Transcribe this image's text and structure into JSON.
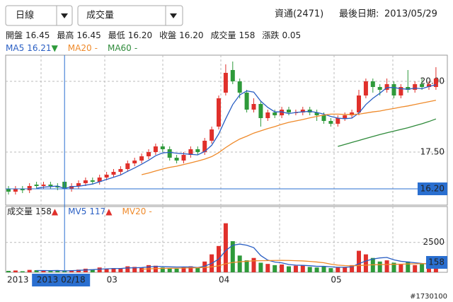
{
  "header": {
    "period": "日線",
    "indicator": "成交量",
    "stock": "資通(2471)",
    "last_date_label": "最後日期:",
    "last_date": "2013/05/29"
  },
  "info": [
    {
      "label": "開盤",
      "value": "16.45"
    },
    {
      "label": "最高",
      "value": "16.45"
    },
    {
      "label": "最低",
      "value": "16.20"
    },
    {
      "label": "收盤",
      "value": "16.20"
    },
    {
      "label": "成交量",
      "value": "158"
    },
    {
      "label": "漲跌",
      "value": "0.05"
    }
  ],
  "watermark": "#1730100",
  "chart_data": [
    {
      "type": "candlestick",
      "categories": [
        "2013",
        null,
        null,
        null,
        null,
        null,
        null,
        null,
        null,
        null,
        null,
        null,
        null,
        null,
        "03",
        null,
        null,
        null,
        null,
        null,
        null,
        null,
        null,
        null,
        null,
        null,
        null,
        null,
        null,
        null,
        "04",
        null,
        null,
        null,
        null,
        null,
        null,
        null,
        null,
        null,
        null,
        null,
        null,
        null,
        null,
        null,
        "05",
        null,
        null,
        null,
        null,
        null,
        null,
        null,
        null,
        null,
        null,
        null,
        null,
        null,
        null,
        null
      ],
      "open": [
        16.2,
        16.1,
        16.2,
        16.15,
        16.35,
        16.3,
        16.35,
        16.3,
        16.45,
        16.2,
        16.3,
        16.4,
        16.5,
        16.45,
        16.6,
        16.7,
        16.8,
        16.9,
        17.1,
        17.2,
        17.35,
        17.5,
        17.7,
        17.6,
        17.3,
        17.2,
        17.4,
        17.6,
        17.5,
        17.9,
        18.4,
        19.6,
        20.4,
        20.0,
        19.6,
        19.0,
        19.2,
        18.7,
        18.9,
        18.8,
        19.0,
        18.9,
        18.9,
        19.0,
        18.9,
        18.8,
        18.6,
        18.5,
        18.7,
        18.8,
        18.9,
        19.5,
        20.0,
        19.8,
        19.7,
        19.9,
        19.5,
        19.8,
        19.7,
        19.9,
        19.8,
        19.8
      ],
      "high": [
        16.3,
        16.3,
        16.3,
        16.4,
        16.45,
        16.45,
        16.45,
        16.4,
        16.45,
        16.4,
        16.5,
        16.6,
        16.6,
        16.7,
        16.8,
        16.9,
        17.0,
        17.2,
        17.3,
        17.45,
        17.6,
        17.8,
        17.8,
        17.7,
        17.4,
        17.5,
        17.7,
        17.7,
        18.0,
        18.4,
        19.5,
        20.6,
        20.7,
        20.1,
        19.7,
        19.4,
        19.3,
        19.0,
        19.0,
        19.1,
        19.1,
        19.0,
        19.1,
        19.1,
        19.0,
        18.9,
        18.7,
        18.8,
        18.9,
        19.0,
        19.7,
        20.1,
        20.1,
        19.9,
        20.1,
        20.0,
        19.9,
        20.4,
        20.0,
        20.1,
        20.0,
        20.5
      ],
      "low": [
        16.0,
        16.0,
        16.05,
        16.05,
        16.2,
        16.2,
        16.2,
        16.15,
        16.2,
        16.1,
        16.2,
        16.3,
        16.35,
        16.35,
        16.5,
        16.6,
        16.7,
        16.8,
        17.0,
        17.1,
        17.25,
        17.4,
        17.5,
        17.2,
        17.1,
        17.1,
        17.3,
        17.4,
        17.4,
        17.8,
        18.3,
        19.5,
        19.9,
        19.4,
        18.9,
        18.9,
        18.4,
        18.6,
        18.7,
        18.7,
        18.8,
        18.8,
        18.8,
        18.8,
        18.6,
        18.5,
        18.4,
        18.4,
        18.6,
        18.7,
        18.8,
        19.4,
        19.6,
        19.5,
        19.6,
        19.4,
        19.4,
        19.6,
        19.6,
        19.7,
        19.7,
        19.7
      ],
      "close": [
        16.1,
        16.2,
        16.15,
        16.3,
        16.3,
        16.35,
        16.3,
        16.25,
        16.2,
        16.3,
        16.4,
        16.5,
        16.45,
        16.6,
        16.7,
        16.8,
        16.9,
        17.1,
        17.2,
        17.35,
        17.5,
        17.7,
        17.6,
        17.3,
        17.2,
        17.4,
        17.6,
        17.5,
        17.9,
        18.3,
        19.4,
        20.3,
        20.0,
        19.6,
        19.0,
        19.2,
        18.7,
        18.9,
        18.8,
        19.0,
        18.9,
        18.9,
        19.0,
        18.9,
        18.8,
        18.6,
        18.5,
        18.7,
        18.8,
        18.9,
        19.5,
        20.0,
        19.8,
        19.7,
        19.9,
        19.5,
        19.8,
        19.7,
        19.9,
        19.8,
        19.9,
        20.1
      ],
      "up_color": "#e0302b",
      "down_color": "#2e9a3a",
      "lines": [
        {
          "name": "MA5",
          "value": "16.21",
          "arrow": "▼",
          "arrow_color": "#2e9a3a",
          "color": "#2a5fc4",
          "values": [
            null,
            null,
            null,
            null,
            16.22,
            16.26,
            16.28,
            16.3,
            16.21,
            16.28,
            16.29,
            16.33,
            16.37,
            16.45,
            16.53,
            16.61,
            16.69,
            16.82,
            16.94,
            17.07,
            17.21,
            17.37,
            17.47,
            17.49,
            17.46,
            17.44,
            17.42,
            17.4,
            17.52,
            17.74,
            18.14,
            18.68,
            19.18,
            19.52,
            19.66,
            19.62,
            19.3,
            19.08,
            18.92,
            18.92,
            18.86,
            18.9,
            18.92,
            18.94,
            18.9,
            18.84,
            18.76,
            18.7,
            18.68,
            18.7,
            18.88,
            19.18,
            19.4,
            19.58,
            19.78,
            19.78,
            19.74,
            19.72,
            19.76,
            19.74,
            19.82,
            19.88
          ]
        },
        {
          "name": "MA20",
          "value": "-",
          "color": "#ef8a2a",
          "values": [
            null,
            null,
            null,
            null,
            null,
            null,
            null,
            null,
            null,
            null,
            null,
            null,
            null,
            null,
            null,
            null,
            null,
            null,
            null,
            16.7,
            16.76,
            16.83,
            16.9,
            16.96,
            17.0,
            17.06,
            17.12,
            17.18,
            17.25,
            17.34,
            17.48,
            17.66,
            17.82,
            17.96,
            18.06,
            18.17,
            18.25,
            18.33,
            18.4,
            18.48,
            18.55,
            18.6,
            18.65,
            18.71,
            18.76,
            18.81,
            18.84,
            18.84,
            18.83,
            18.83,
            18.84,
            18.88,
            18.92,
            18.95,
            19.0,
            19.04,
            19.09,
            19.13,
            19.18,
            19.23,
            19.28,
            19.33
          ]
        },
        {
          "name": "MA60",
          "value": "-",
          "color": "#2e8a3a",
          "values": [
            null,
            null,
            null,
            null,
            null,
            null,
            null,
            null,
            null,
            null,
            null,
            null,
            null,
            null,
            null,
            null,
            null,
            null,
            null,
            null,
            null,
            null,
            null,
            null,
            null,
            null,
            null,
            null,
            null,
            null,
            null,
            null,
            null,
            null,
            null,
            null,
            null,
            null,
            null,
            null,
            null,
            null,
            null,
            null,
            null,
            null,
            null,
            17.7,
            17.77,
            17.84,
            17.91,
            17.98,
            18.05,
            18.12,
            18.18,
            18.24,
            18.3,
            18.36,
            18.43,
            18.5,
            18.58,
            18.67
          ]
        }
      ],
      "ylim": [
        15.625,
        20.925
      ],
      "yticks": [
        {
          "value": 17.5,
          "label": "17.50"
        },
        {
          "value": 20,
          "label": "20.00"
        }
      ],
      "grid": true,
      "cursor": {
        "index": 8,
        "price_label": "16.20",
        "date_label": "2013 02/18"
      }
    },
    {
      "type": "bar",
      "name": "成交量",
      "value": "158",
      "arrow": "▲",
      "arrow_color": "#e0302b",
      "values": [
        120,
        150,
        90,
        200,
        180,
        130,
        110,
        140,
        158,
        160,
        220,
        300,
        250,
        400,
        280,
        350,
        300,
        500,
        450,
        380,
        600,
        550,
        400,
        350,
        300,
        450,
        500,
        400,
        900,
        1500,
        2200,
        4100,
        2600,
        1400,
        1000,
        1200,
        800,
        700,
        600,
        650,
        500,
        550,
        600,
        450,
        400,
        500,
        350,
        400,
        450,
        600,
        1800,
        1500,
        1200,
        900,
        1000,
        800,
        700,
        900,
        600,
        700,
        500,
        650
      ],
      "lines": [
        {
          "name": "MV5",
          "value": "117",
          "arrow": "▲",
          "arrow_color": "#e0302b",
          "color": "#2a5fc4",
          "values": [
            null,
            null,
            null,
            null,
            150,
            150,
            142,
            152,
            117,
            140,
            158,
            196,
            218,
            266,
            290,
            316,
            316,
            366,
            376,
            396,
            446,
            496,
            476,
            456,
            440,
            450,
            440,
            400,
            510,
            750,
            1100,
            1820,
            2260,
            2360,
            2260,
            2060,
            1400,
            1020,
            860,
            790,
            650,
            600,
            580,
            550,
            500,
            500,
            460,
            420,
            420,
            460,
            720,
            950,
            1110,
            1200,
            1240,
            1040,
            920,
            860,
            800,
            740,
            680,
            670
          ]
        },
        {
          "name": "MV20",
          "value": "-",
          "color": "#ef8a2a",
          "values": [
            null,
            null,
            null,
            null,
            null,
            null,
            null,
            null,
            null,
            null,
            null,
            null,
            null,
            null,
            null,
            null,
            null,
            null,
            null,
            260,
            285,
            310,
            325,
            335,
            340,
            355,
            370,
            380,
            410,
            460,
            540,
            720,
            820,
            880,
            920,
            960,
            970,
            980,
            990,
            1000,
            990,
            970,
            950,
            910,
            860,
            800,
            680,
            600,
            560,
            540,
            560,
            600,
            630,
            640,
            660,
            670,
            680,
            700,
            710,
            720,
            730,
            740
          ]
        }
      ],
      "ylim": [
        0,
        5500
      ],
      "yticks": [
        2500
      ],
      "grid": true
    }
  ]
}
